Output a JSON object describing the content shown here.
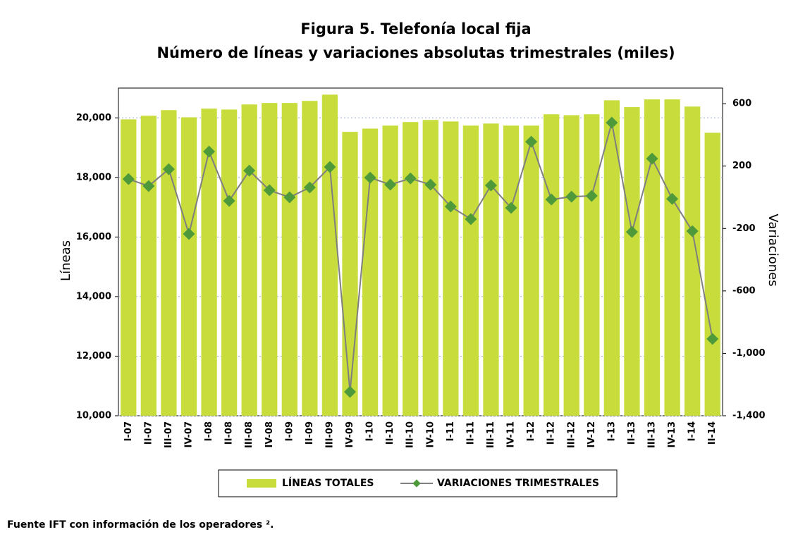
{
  "chart_data": {
    "type": "bar-line",
    "title": "Figura 5. Telefonía local fija",
    "subtitle": "Número de líneas y variaciones absolutas trimestrales (miles)",
    "y_label": "Líneas",
    "y2_label": "Variaciones",
    "categories": [
      "I-07",
      "II-07",
      "III-07",
      "IV-07",
      "I-08",
      "II-08",
      "III-08",
      "IV-08",
      "I-09",
      "II-09",
      "III-09",
      "IV-09",
      "I-10",
      "II-10",
      "III-10",
      "IV-10",
      "I-11",
      "II-11",
      "III-11",
      "IV-11",
      "I-12",
      "II-12",
      "III-12",
      "IV-12",
      "I-13",
      "II-13",
      "III-13",
      "IV-13",
      "I-14",
      "II-14"
    ],
    "series": [
      {
        "name": "LÍNEAS  TOTALES",
        "type": "bar",
        "color": "#c8dd3c",
        "values": [
          19950,
          20070,
          20260,
          20020,
          20310,
          20280,
          20450,
          20500,
          20500,
          20570,
          20780,
          19530,
          19640,
          19740,
          19860,
          19930,
          19880,
          19740,
          19810,
          19740,
          19740,
          20120,
          20090,
          20120,
          20590,
          20360,
          20620,
          20620,
          20380,
          19500
        ]
      },
      {
        "name": "VARIACIONES TRIMESTRALES",
        "type": "line",
        "axis": "y2",
        "color": "#7f7f7f",
        "marker_color": "#4e9a3a",
        "values": [
          117,
          72,
          180,
          -235,
          293,
          -23,
          171,
          45,
          0,
          63,
          194,
          -1247,
          126,
          81,
          121,
          81,
          -59,
          -140,
          76,
          -68,
          356,
          -14,
          4,
          9,
          478,
          -222,
          248,
          -10,
          -217,
          -908
        ]
      }
    ],
    "ylim": [
      10000,
      21000
    ],
    "yticks": [
      {
        "value": 10000,
        "label": "10,000"
      },
      {
        "value": 12000,
        "label": "12,000"
      },
      {
        "value": 14000,
        "label": "14,000"
      },
      {
        "value": 16000,
        "label": "16,000"
      },
      {
        "value": 18000,
        "label": "18,000"
      },
      {
        "value": 20000,
        "label": "20,000"
      }
    ],
    "y2lim": [
      -1400,
      700
    ],
    "y2ticks": [
      600,
      200,
      -200,
      -600,
      {
        "value": -1000,
        "label": "-1,000"
      },
      {
        "value": -1400,
        "label": "-1,400"
      }
    ],
    "grid": true,
    "footnote": "Fuente IFT con información de los operadores ²."
  }
}
